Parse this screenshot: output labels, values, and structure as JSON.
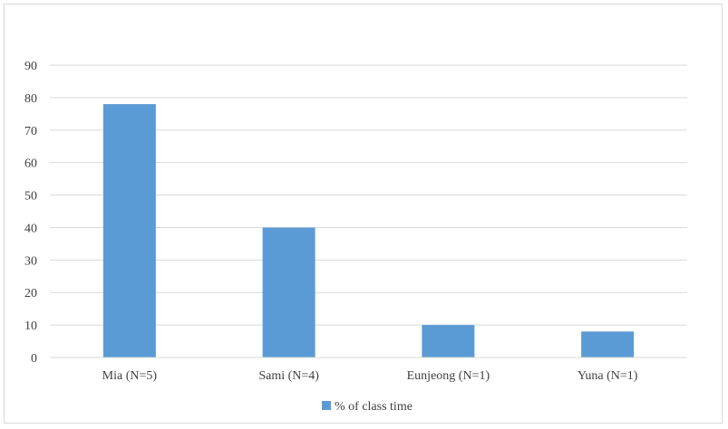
{
  "chart_data": {
    "type": "bar",
    "title": "",
    "xlabel": "",
    "ylabel": "",
    "categories": [
      "Mia (N=5)",
      "Sami (N=4)",
      "Eunjeong (N=1)",
      "Yuna (N=1)"
    ],
    "series": [
      {
        "name": "% of class time",
        "values": [
          78,
          40,
          10,
          8
        ],
        "color": "#5b9bd5"
      }
    ],
    "ylim": [
      0,
      90
    ],
    "yticks": [
      "0",
      "10",
      "20",
      "30",
      "40",
      "50",
      "60",
      "70",
      "80",
      "90"
    ],
    "grid": true,
    "legend_position": "bottom"
  }
}
